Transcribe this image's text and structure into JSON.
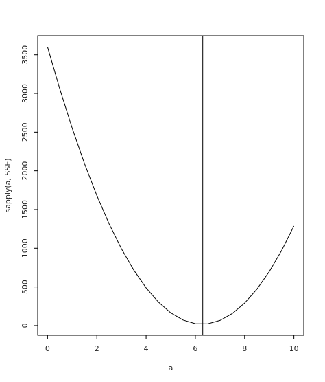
{
  "chart_data": {
    "type": "line",
    "x_label": "a",
    "y_label": "sapply(a, SSE)",
    "x": [
      0,
      0.5,
      1,
      1.5,
      2,
      2.5,
      3,
      3.5,
      4,
      4.5,
      5,
      5.5,
      6,
      6.5,
      7,
      7.5,
      8,
      8.5,
      9,
      9.5,
      10
    ],
    "series": [
      {
        "color": "#000000",
        "values": [
          3600,
          3054,
          2551,
          2093,
          1681,
          1314,
          993,
          718,
          488,
          304,
          165,
          72,
          25,
          23,
          67,
          156,
          291,
          472,
          698,
          969,
          1287
        ]
      }
    ],
    "vline": 6.3,
    "xlim": [
      -0.4,
      10.4
    ],
    "ylim": [
      -125,
      3746
    ],
    "xticks": [
      0,
      2,
      4,
      6,
      8,
      10
    ],
    "yticks": [
      0,
      500,
      1000,
      1500,
      2000,
      2500,
      3000,
      3500
    ]
  }
}
